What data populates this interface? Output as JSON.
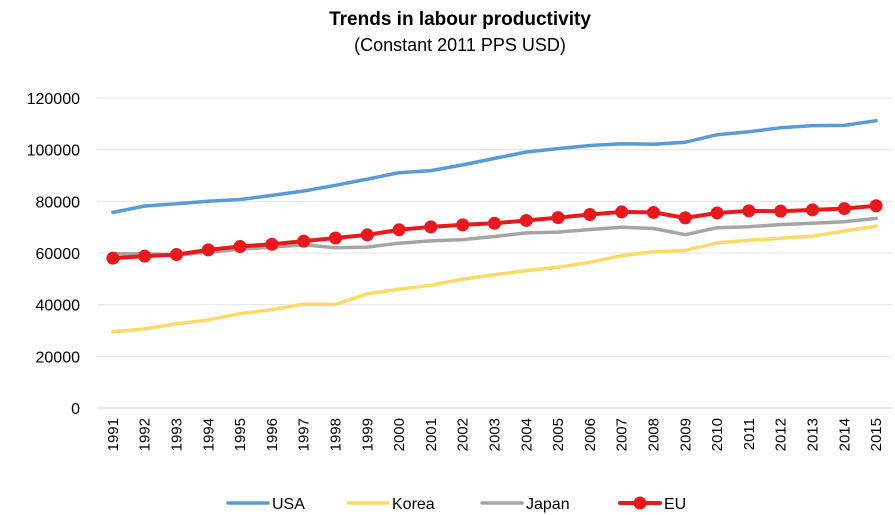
{
  "chart_data": {
    "type": "line",
    "title": "Trends in labour productivity",
    "subtitle": "(Constant 2011 PPS USD)",
    "xlabel": "",
    "ylabel": "",
    "ylim": [
      0,
      120000
    ],
    "yticks": [
      "0",
      "20000",
      "40000",
      "60000",
      "80000",
      "100000",
      "120000"
    ],
    "ytick_values": [
      0,
      20000,
      40000,
      60000,
      80000,
      100000,
      120000
    ],
    "grid": true,
    "legend_position": "bottom",
    "categories": [
      "1991",
      "1992",
      "1993",
      "1994",
      "1995",
      "1996",
      "1997",
      "1998",
      "1999",
      "2000",
      "2001",
      "2002",
      "2003",
      "2004",
      "2005",
      "2006",
      "2007",
      "2008",
      "2009",
      "2010",
      "2011",
      "2012",
      "2013",
      "2014",
      "2015"
    ],
    "series": [
      {
        "name": "USA",
        "color": "#5B9BD5",
        "marker": false,
        "values": [
          75700,
          78200,
          79100,
          80000,
          80700,
          82300,
          84000,
          86200,
          88600,
          91100,
          91900,
          94100,
          96600,
          99100,
          100400,
          101600,
          102300,
          102100,
          102900,
          105800,
          106900,
          108500,
          109300,
          109400,
          111200
        ]
      },
      {
        "name": "Korea",
        "color": "#FFD966",
        "marker": false,
        "values": [
          29500,
          30600,
          32600,
          34100,
          36500,
          38100,
          40200,
          40100,
          44200,
          46000,
          47500,
          49900,
          51600,
          53200,
          54500,
          56400,
          59000,
          60500,
          61000,
          63900,
          64900,
          65700,
          66500,
          68500,
          70400
        ]
      },
      {
        "name": "Japan",
        "color": "#A5A5A5",
        "marker": false,
        "values": [
          59700,
          59700,
          59300,
          60300,
          61500,
          62300,
          63200,
          62000,
          62300,
          63800,
          64700,
          65200,
          66400,
          67800,
          68100,
          69100,
          70000,
          69500,
          67100,
          69800,
          70200,
          71000,
          71500,
          72100,
          73400
        ]
      },
      {
        "name": "EU",
        "color": "#E8191C",
        "marker": true,
        "values": [
          58000,
          58800,
          59400,
          61200,
          62500,
          63400,
          64600,
          65800,
          67000,
          69000,
          70100,
          70900,
          71500,
          72600,
          73700,
          74900,
          75900,
          75700,
          73600,
          75500,
          76300,
          76200,
          76700,
          77200,
          78300
        ]
      }
    ]
  }
}
